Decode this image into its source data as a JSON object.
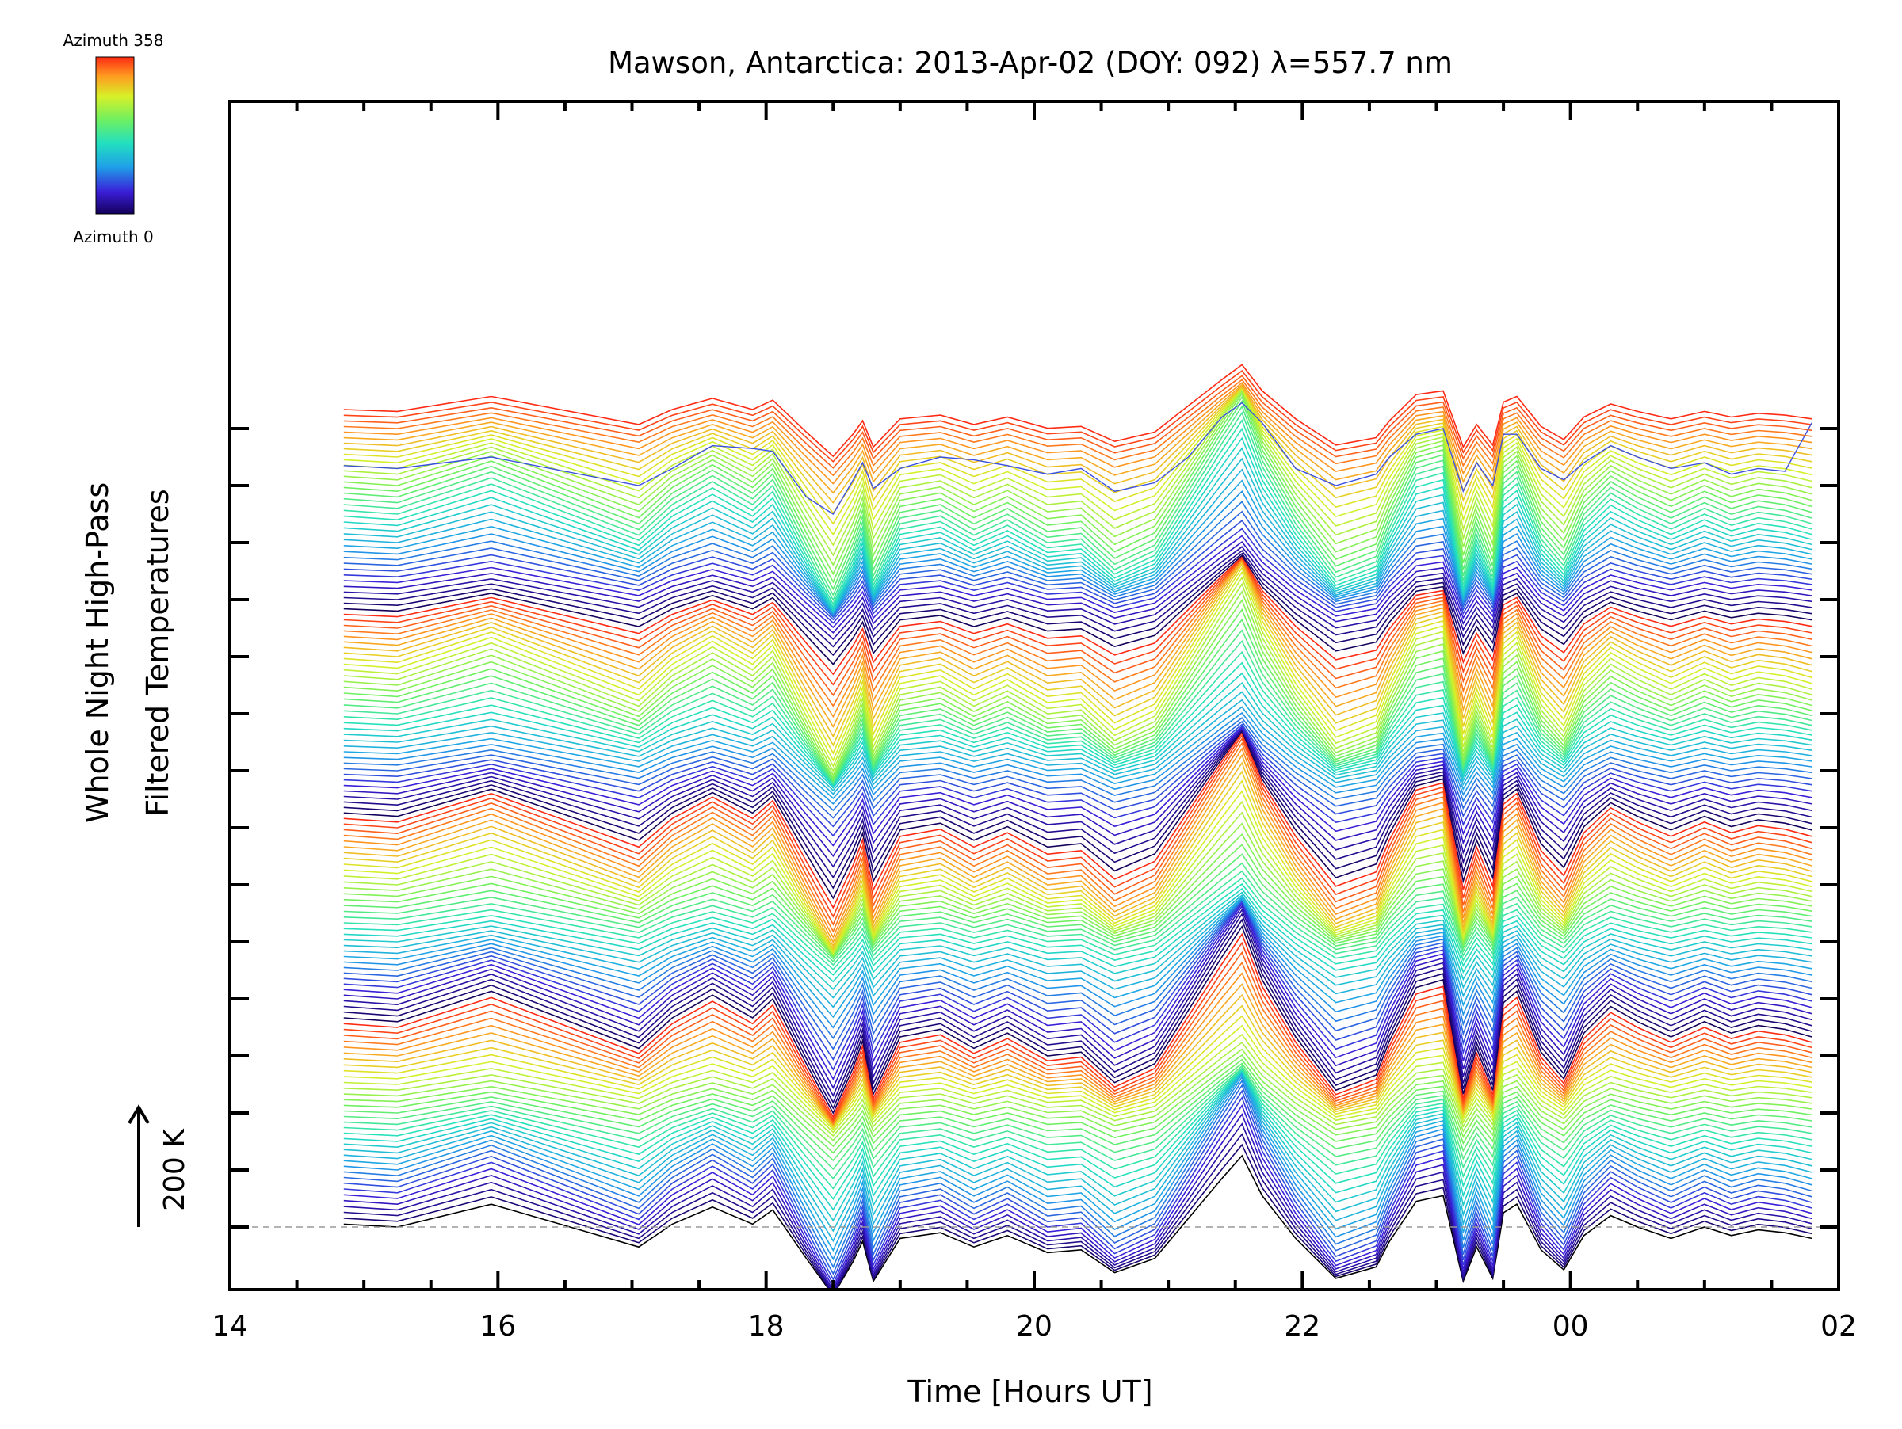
{
  "chart_data": {
    "type": "line",
    "title": "Mawson, Antarctica: 2013-Apr-02 (DOY: 092) λ=557.7 nm",
    "xlabel": "Time [Hours UT]",
    "ylabel_line1": "Whole Night High-Pass",
    "ylabel_line2": "Filtered Temperatures",
    "x_ticks": [
      "14",
      "16",
      "18",
      "20",
      "22",
      "00",
      "02"
    ],
    "x_range_hours": [
      14,
      26
    ],
    "scale_label": "200 K",
    "colorbar": {
      "top_label": "Azimuth 358",
      "bottom_label": "Azimuth 0"
    },
    "grid": false,
    "n_azimuth_traces": 144,
    "trace_offset_K": 10,
    "series_shape": {
      "x_hours": [
        14.85,
        15.25,
        15.95,
        17.05,
        17.3,
        17.6,
        17.9,
        18.05,
        18.3,
        18.5,
        18.65,
        18.72,
        18.8,
        19.0,
        19.3,
        19.55,
        19.8,
        20.1,
        20.35,
        20.6,
        20.9,
        21.15,
        21.4,
        21.55,
        21.7,
        21.95,
        22.25,
        22.55,
        22.65,
        22.85,
        23.05,
        23.2,
        23.3,
        23.42,
        23.5,
        23.6,
        23.78,
        23.95,
        24.1,
        24.3,
        24.5,
        24.75,
        25.0,
        25.2,
        25.4,
        25.6,
        25.8
      ],
      "y_K": [
        5,
        0,
        40,
        -35,
        5,
        35,
        5,
        30,
        -55,
        -120,
        -60,
        -25,
        -95,
        -20,
        -10,
        -35,
        -15,
        -45,
        -40,
        -80,
        -55,
        15,
        85,
        125,
        55,
        -20,
        -90,
        -70,
        -25,
        45,
        55,
        -95,
        -35,
        -90,
        25,
        40,
        -40,
        -75,
        -15,
        20,
        0,
        -20,
        0,
        -15,
        -5,
        -10,
        -20
      ]
    },
    "overlay_lines_K": {
      "x_hours": [
        14.85,
        15.25,
        15.95,
        17.05,
        17.3,
        17.6,
        17.9,
        18.05,
        18.3,
        18.5,
        18.65,
        18.72,
        18.8,
        19.0,
        19.3,
        19.55,
        19.8,
        20.1,
        20.35,
        20.6,
        20.9,
        21.15,
        21.4,
        21.55,
        21.7,
        21.95,
        22.25,
        22.55,
        22.65,
        22.85,
        23.05,
        23.2,
        23.3,
        23.42,
        23.5,
        23.6,
        23.78,
        23.95,
        24.1,
        24.3,
        24.5,
        24.75,
        25.0,
        25.2,
        25.4,
        25.6,
        25.8
      ],
      "top_trace_y_K": [
        1335,
        1330,
        1350,
        1300,
        1330,
        1370,
        1365,
        1360,
        1280,
        1250,
        1310,
        1340,
        1295,
        1330,
        1350,
        1345,
        1335,
        1320,
        1330,
        1290,
        1305,
        1350,
        1420,
        1445,
        1410,
        1330,
        1300,
        1320,
        1350,
        1390,
        1400,
        1290,
        1340,
        1300,
        1390,
        1390,
        1330,
        1310,
        1340,
        1370,
        1350,
        1330,
        1340,
        1320,
        1330,
        1325,
        1410
      ]
    }
  }
}
